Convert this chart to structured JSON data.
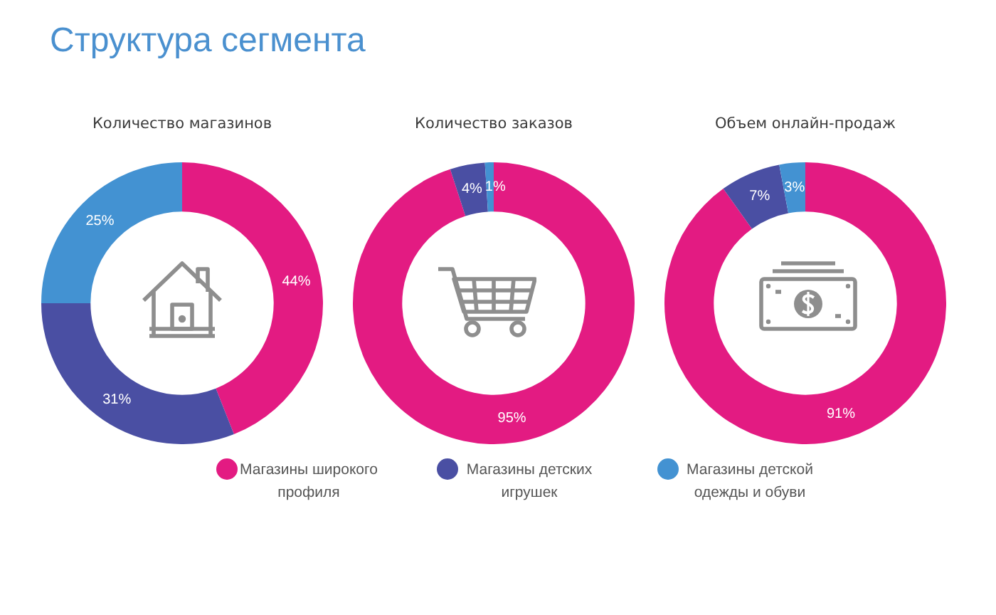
{
  "chart_data": [
    {
      "type": "donut",
      "title": "Структура сегмента",
      "subtitle": "Количество магазинов",
      "categories": [
        "Магазины широкого профиля",
        "Магазины детских игрушек",
        "Магазины детской одежды и обуви"
      ],
      "values": [
        44,
        31,
        25
      ],
      "colors": [
        "#e31b82",
        "#4a4fa3",
        "#4392d2"
      ],
      "value_labels": [
        "44%",
        "31%",
        "25%"
      ],
      "legend": "bottom"
    },
    {
      "type": "donut",
      "title": "Количество заказов",
      "categories": [
        null,
        null,
        null
      ],
      "values": [
        95,
        4,
        1
      ],
      "colors": [
        "#e31b82",
        "#4a4fa3",
        "#4392d2"
      ],
      "value_labels": [
        "95%",
        "4%",
        "1%"
      ]
    },
    {
      "type": "donut",
      "title": "Объем онлайн-продаж",
      "categories": [
        null,
        null,
        null
      ],
      "values": [
        91,
        7,
        3
      ],
      "colors": [
        "#e31b82",
        "#4a4fa3",
        "#4392d2"
      ],
      "value_labels": [
        "91%",
        "7%",
        "3%"
      ]
    }
  ]
}
